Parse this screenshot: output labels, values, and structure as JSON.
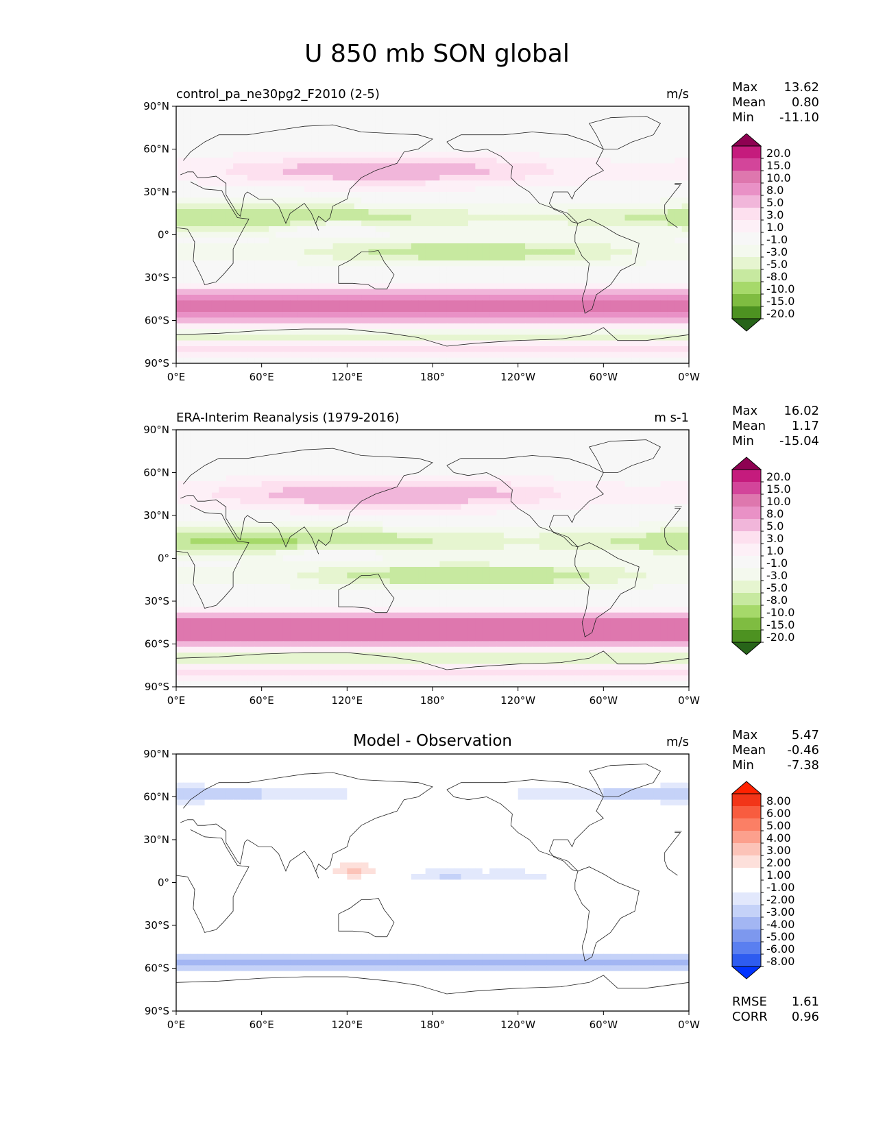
{
  "title": "U 850 mb SON global",
  "panel_colors": {
    "model_obs": [
      "#276419",
      "#4d9221",
      "#7fbc41",
      "#a6d96a",
      "#c7e9a0",
      "#e6f5d0",
      "#f4f9ee",
      "#f7f7f7",
      "#fdf0f7",
      "#fde0ef",
      "#f1b6da",
      "#e991c6",
      "#de77ae",
      "#d3459a",
      "#c51b7d",
      "#8e0152"
    ],
    "diff": [
      "#0033ff",
      "#2e5cf0",
      "#5a7ff0",
      "#7d98ee",
      "#a3b6f3",
      "#c5d2f8",
      "#e2e8fc",
      "#ffffff",
      "#ffffff",
      "#fde0db",
      "#fcc3b8",
      "#fca08d",
      "#fb7f65",
      "#f85c3f",
      "#f23518",
      "#ff2200"
    ]
  },
  "chart_data": [
    {
      "type": "heatmap",
      "title": "control_pa_ne30pg2_F2010 (2-5)",
      "units": "m/s",
      "stats": {
        "max_label": "Max",
        "max": "13.62",
        "mean_label": "Mean",
        "mean": "0.80",
        "min_label": "Min",
        "min": "-11.10"
      },
      "x_ticks": [
        "0°E",
        "60°E",
        "120°E",
        "180°",
        "120°W",
        "60°W",
        "0°W"
      ],
      "y_ticks": [
        "90°N",
        "60°N",
        "30°N",
        "0°",
        "30°S",
        "60°S",
        "90°S"
      ],
      "colorbar_levels": [
        "20.0",
        "15.0",
        "10.0",
        "8.0",
        "5.0",
        "3.0",
        "1.0",
        "-1.0",
        "-3.0",
        "-5.0",
        "-8.0",
        "-10.0",
        "-15.0",
        "-20.0"
      ],
      "xlim": [
        0,
        360
      ],
      "ylim": [
        -90,
        90
      ]
    },
    {
      "type": "heatmap",
      "title": "ERA-Interim Reanalysis (1979-2016)",
      "units": "m s-1",
      "stats": {
        "max_label": "Max",
        "max": "16.02",
        "mean_label": "Mean",
        "mean": "1.17",
        "min_label": "Min",
        "min": "-15.04"
      },
      "x_ticks": [
        "0°E",
        "60°E",
        "120°E",
        "180°",
        "120°W",
        "60°W",
        "0°W"
      ],
      "y_ticks": [
        "90°N",
        "60°N",
        "30°N",
        "0°",
        "30°S",
        "60°S",
        "90°S"
      ],
      "colorbar_levels": [
        "20.0",
        "15.0",
        "10.0",
        "8.0",
        "5.0",
        "3.0",
        "1.0",
        "-1.0",
        "-3.0",
        "-5.0",
        "-8.0",
        "-10.0",
        "-15.0",
        "-20.0"
      ],
      "xlim": [
        0,
        360
      ],
      "ylim": [
        -90,
        90
      ]
    },
    {
      "type": "heatmap",
      "title": "Model - Observation",
      "units": "m/s",
      "stats": {
        "max_label": "Max",
        "max": "5.47",
        "mean_label": "Mean",
        "mean": "-0.46",
        "min_label": "Min",
        "min": "-7.38"
      },
      "extra_stats": {
        "rmse_label": "RMSE",
        "rmse": "1.61",
        "corr_label": "CORR",
        "corr": "0.96"
      },
      "x_ticks": [
        "0°E",
        "60°E",
        "120°E",
        "180°",
        "120°W",
        "60°W",
        "0°W"
      ],
      "y_ticks": [
        "90°N",
        "60°N",
        "30°N",
        "0°",
        "30°S",
        "60°S",
        "90°S"
      ],
      "colorbar_levels": [
        "8.00",
        "6.00",
        "5.00",
        "4.00",
        "3.00",
        "2.00",
        "1.00",
        "-1.00",
        "-2.00",
        "-3.00",
        "-4.00",
        "-5.00",
        "-6.00",
        "-8.00"
      ],
      "xlim": [
        0,
        360
      ],
      "ylim": [
        -90,
        90
      ]
    }
  ]
}
